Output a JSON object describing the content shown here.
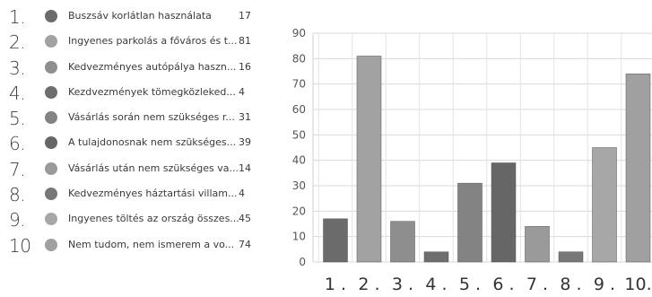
{
  "chart_data": {
    "type": "bar",
    "categories": [
      "1.",
      "2.",
      "3.",
      "4.",
      "5.",
      "6.",
      "7.",
      "8.",
      "9.",
      "10."
    ],
    "x_tick_labels": [
      "1 .",
      "2 .",
      "3 .",
      "4 .",
      "5 .",
      "6 .",
      "7 .",
      "8 .",
      "9 .",
      "10."
    ],
    "values": [
      17,
      81,
      16,
      4,
      31,
      39,
      14,
      4,
      45,
      74
    ],
    "ylim": [
      0,
      90
    ],
    "yticks": [
      0,
      10,
      20,
      30,
      40,
      50,
      60,
      70,
      80,
      90
    ],
    "grid": true,
    "title": "",
    "xlabel": "",
    "ylabel": "",
    "legend_position": "left",
    "legend": [
      {
        "num": "1.",
        "label": "Buszsáv korlátlan használata",
        "value": "17",
        "color": "#6b6b6b"
      },
      {
        "num": "2.",
        "label": "Ingyenes parkolás a főváros és t...",
        "value": "81",
        "color": "#a2a2a2"
      },
      {
        "num": "3.",
        "label": "Kedvezményes autópálya haszn...",
        "value": "16",
        "color": "#8e8e8e"
      },
      {
        "num": "4.",
        "label": "Kezdvezmények tömegközleked...",
        "value": "4",
        "color": "#6e6e6e"
      },
      {
        "num": "5.",
        "label": "Vásárlás során nem szükséges r...",
        "value": "31",
        "color": "#838383"
      },
      {
        "num": "6.",
        "label": "A tulajdonosnak nem szükséges...",
        "value": "39",
        "color": "#666666"
      },
      {
        "num": "7.",
        "label": "Vásárlás után nem szükséges va...",
        "value": "14",
        "color": "#9a9a9a"
      },
      {
        "num": "8.",
        "label": "Kedvezményes háztartási villam...",
        "value": "4",
        "color": "#777777"
      },
      {
        "num": "9.",
        "label": "Ingyenes töltés az ország összes...",
        "value": "45",
        "color": "#a7a7a7"
      },
      {
        "num": "10",
        "label": "Nem tudom, nem ismerem a vo...",
        "value": "74",
        "color": "#a0a0a0"
      }
    ]
  }
}
